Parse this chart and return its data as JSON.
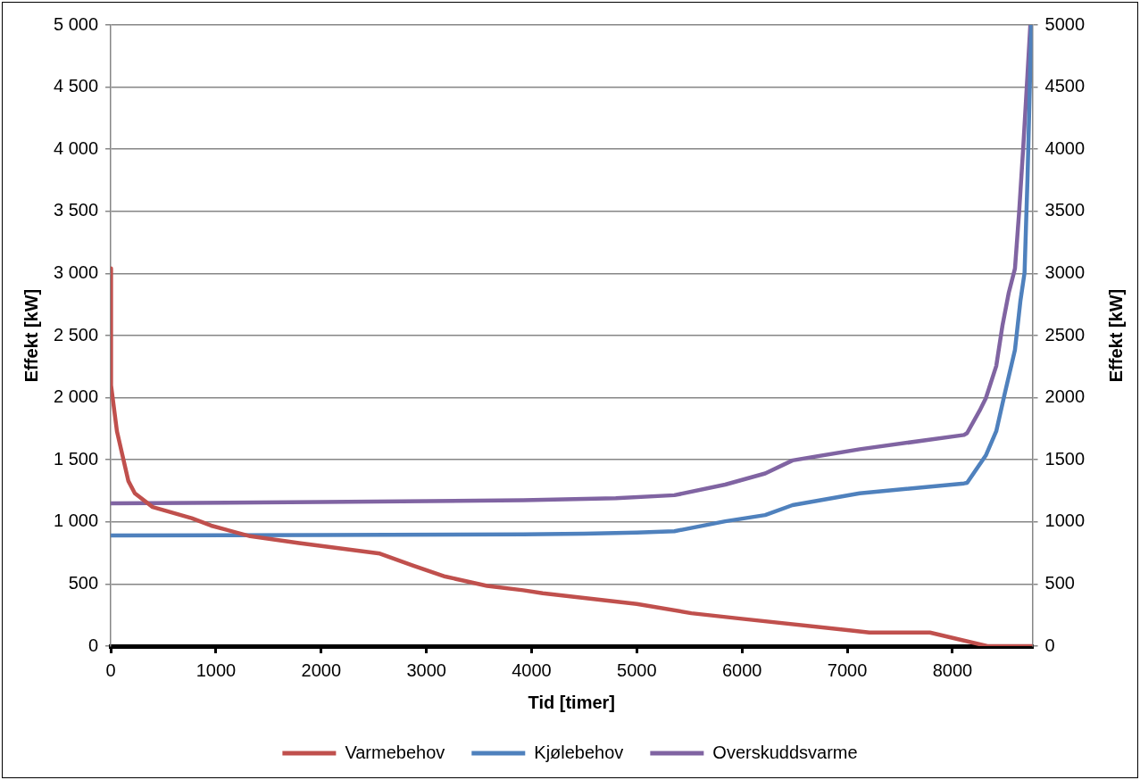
{
  "chart_data": {
    "type": "line",
    "xlabel": "Tid [timer]",
    "ylabel": "Effekt [kW]",
    "y2label": "Effekt [kW]",
    "xlim": [
      0,
      8760
    ],
    "xticks": [
      0,
      1000,
      2000,
      3000,
      4000,
      5000,
      6000,
      7000,
      8000
    ],
    "ylim": [
      0,
      5000
    ],
    "yticks": [
      {
        "value": 0,
        "label": "0"
      },
      {
        "value": 500,
        "label": "500"
      },
      {
        "value": 1000,
        "label": "1 000"
      },
      {
        "value": 1500,
        "label": "1 500"
      },
      {
        "value": 2000,
        "label": "2 000"
      },
      {
        "value": 2500,
        "label": "2 500"
      },
      {
        "value": 3000,
        "label": "3 000"
      },
      {
        "value": 3500,
        "label": "3 500"
      },
      {
        "value": 4000,
        "label": "4 000"
      },
      {
        "value": 4500,
        "label": "4 500"
      },
      {
        "value": 5000,
        "label": "5 000"
      }
    ],
    "y2lim": [
      0,
      5000
    ],
    "y2ticks": [
      0,
      500,
      1000,
      1500,
      2000,
      2500,
      3000,
      3500,
      4000,
      4500,
      5000
    ],
    "grid": "y",
    "legend": "bottom",
    "marker": "none",
    "line_style": "solid",
    "series": [
      {
        "name": "Varmebehov",
        "color": "#c0504d",
        "x": [
          0,
          3,
          59,
          167,
          229,
          398,
          769,
          954,
          1325,
          1789,
          2558,
          2870,
          3179,
          3577,
          3920,
          4106,
          5000,
          5518,
          6000,
          7000,
          7210,
          7785,
          8332,
          8760
        ],
        "values": [
          3040,
          2100,
          1730,
          1330,
          1230,
          1120,
          1030,
          970,
          885,
          830,
          745,
          650,
          560,
          485,
          450,
          425,
          340,
          265,
          220,
          130,
          110,
          110,
          0,
          0
        ]
      },
      {
        "name": "Kjølebehov",
        "color": "#4f81bd",
        "x": [
          0,
          2000,
          3920,
          4500,
          5000,
          5357,
          5840,
          6220,
          6480,
          7118,
          8110,
          8139,
          8317,
          8416,
          8495,
          8594,
          8646,
          8685,
          8713,
          8750
        ],
        "values": [
          890,
          895,
          900,
          905,
          915,
          925,
          1005,
          1055,
          1135,
          1230,
          1310,
          1315,
          1535,
          1730,
          2025,
          2385,
          2780,
          3005,
          3760,
          5000
        ]
      },
      {
        "name": "Overskuddsvarme",
        "color": "#8064a2",
        "x": [
          0,
          2000,
          3920,
          4800,
          5357,
          5840,
          6220,
          6480,
          7118,
          8110,
          8139,
          8258,
          8317,
          8416,
          8475,
          8535,
          8594,
          8634,
          8673,
          8713,
          8740
        ],
        "values": [
          1150,
          1160,
          1175,
          1190,
          1215,
          1300,
          1390,
          1495,
          1585,
          1700,
          1715,
          1895,
          1995,
          2255,
          2580,
          2845,
          3040,
          3500,
          4020,
          4600,
          5000
        ]
      }
    ]
  }
}
